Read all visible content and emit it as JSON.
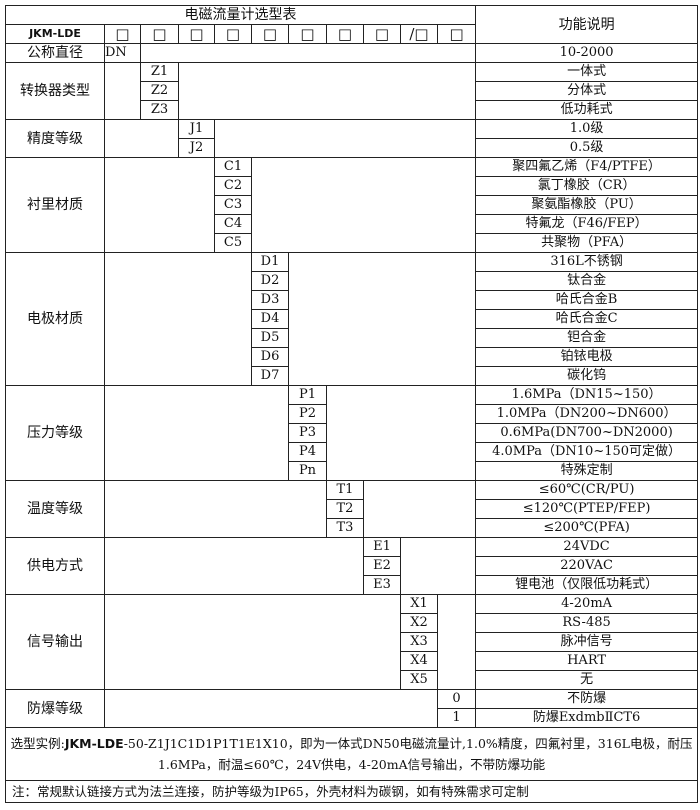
{
  "header": {
    "title": "电磁流量计选型表",
    "function_title": "功能说明",
    "model": "JKM-LDE",
    "boxes": [
      "□",
      "□",
      "□",
      "□",
      "□",
      "□",
      "□",
      "□",
      "/□",
      "□"
    ]
  },
  "groups": [
    {
      "label": "公称直径",
      "col": 1,
      "codes": [
        "DN"
      ],
      "descs": [
        "10-2000"
      ]
    },
    {
      "label": "转换器类型",
      "col": 2,
      "codes": [
        "Z1",
        "Z2",
        "Z3"
      ],
      "descs": [
        "一体式",
        "分体式",
        "低功耗式"
      ]
    },
    {
      "label": "精度等级",
      "col": 3,
      "codes": [
        "J1",
        "J2"
      ],
      "descs": [
        "1.0级",
        "0.5级"
      ]
    },
    {
      "label": "衬里材质",
      "col": 4,
      "codes": [
        "C1",
        "C2",
        "C3",
        "C4",
        "C5"
      ],
      "descs": [
        "聚四氟乙烯（F4/PTFE）",
        "氯丁橡胶（CR）",
        "聚氨酯橡胶（PU）",
        "特氟龙（F46/FEP）",
        "共聚物（PFA）"
      ]
    },
    {
      "label": "电极材质",
      "col": 5,
      "codes": [
        "D1",
        "D2",
        "D3",
        "D4",
        "D5",
        "D6",
        "D7"
      ],
      "descs": [
        "316L不锈钢",
        "钛合金",
        "哈氏合金B",
        "哈氏合金C",
        "钽合金",
        "铂铱电极",
        "碳化钨"
      ]
    },
    {
      "label": "压力等级",
      "col": 6,
      "codes": [
        "P1",
        "P2",
        "P3",
        "P4",
        "Pn"
      ],
      "descs": [
        "1.6MPa（DN15~150）",
        "1.0MPa（DN200~DN600）",
        "0.6MPa(DN700~DN2000)",
        "4.0MPa（DN10~150可定做）",
        "特殊定制"
      ]
    },
    {
      "label": "温度等级",
      "col": 7,
      "codes": [
        "T1",
        "T2",
        "T3"
      ],
      "descs": [
        "≤60℃(CR/PU)",
        "≤120℃(PTEP/FEP)",
        "≤200℃(PFA)"
      ]
    },
    {
      "label": "供电方式",
      "col": 8,
      "codes": [
        "E1",
        "E2",
        "E3"
      ],
      "descs": [
        "24VDC",
        "220VAC",
        "锂电池（仅限低功耗式）"
      ]
    },
    {
      "label": "信号输出",
      "col": 9,
      "codes": [
        "X1",
        "X2",
        "X3",
        "X4",
        "X5"
      ],
      "descs": [
        "4-20mA",
        "RS-485",
        "脉冲信号",
        "HART",
        "无"
      ]
    },
    {
      "label": "防爆等级",
      "col": 10,
      "codes": [
        "0",
        "1"
      ],
      "descs": [
        "不防爆",
        "防爆ExdmbⅡCT6"
      ]
    }
  ],
  "example": {
    "prefix": "选型实例:",
    "model": "JKM-LDE",
    "text": "-50-Z1J1C1D1P1T1E1X10，即为一体式DN50电磁流量计,1.0%精度，四氟衬里，316L电极，耐压1.6MPa，耐温≤60℃，24V供电，4-20mA信号输出，不带防爆功能"
  },
  "note": "注：常规默认链接方式为法兰连接，防护等级为IP65，外壳材料为碳钢，如有特殊需求可定制"
}
